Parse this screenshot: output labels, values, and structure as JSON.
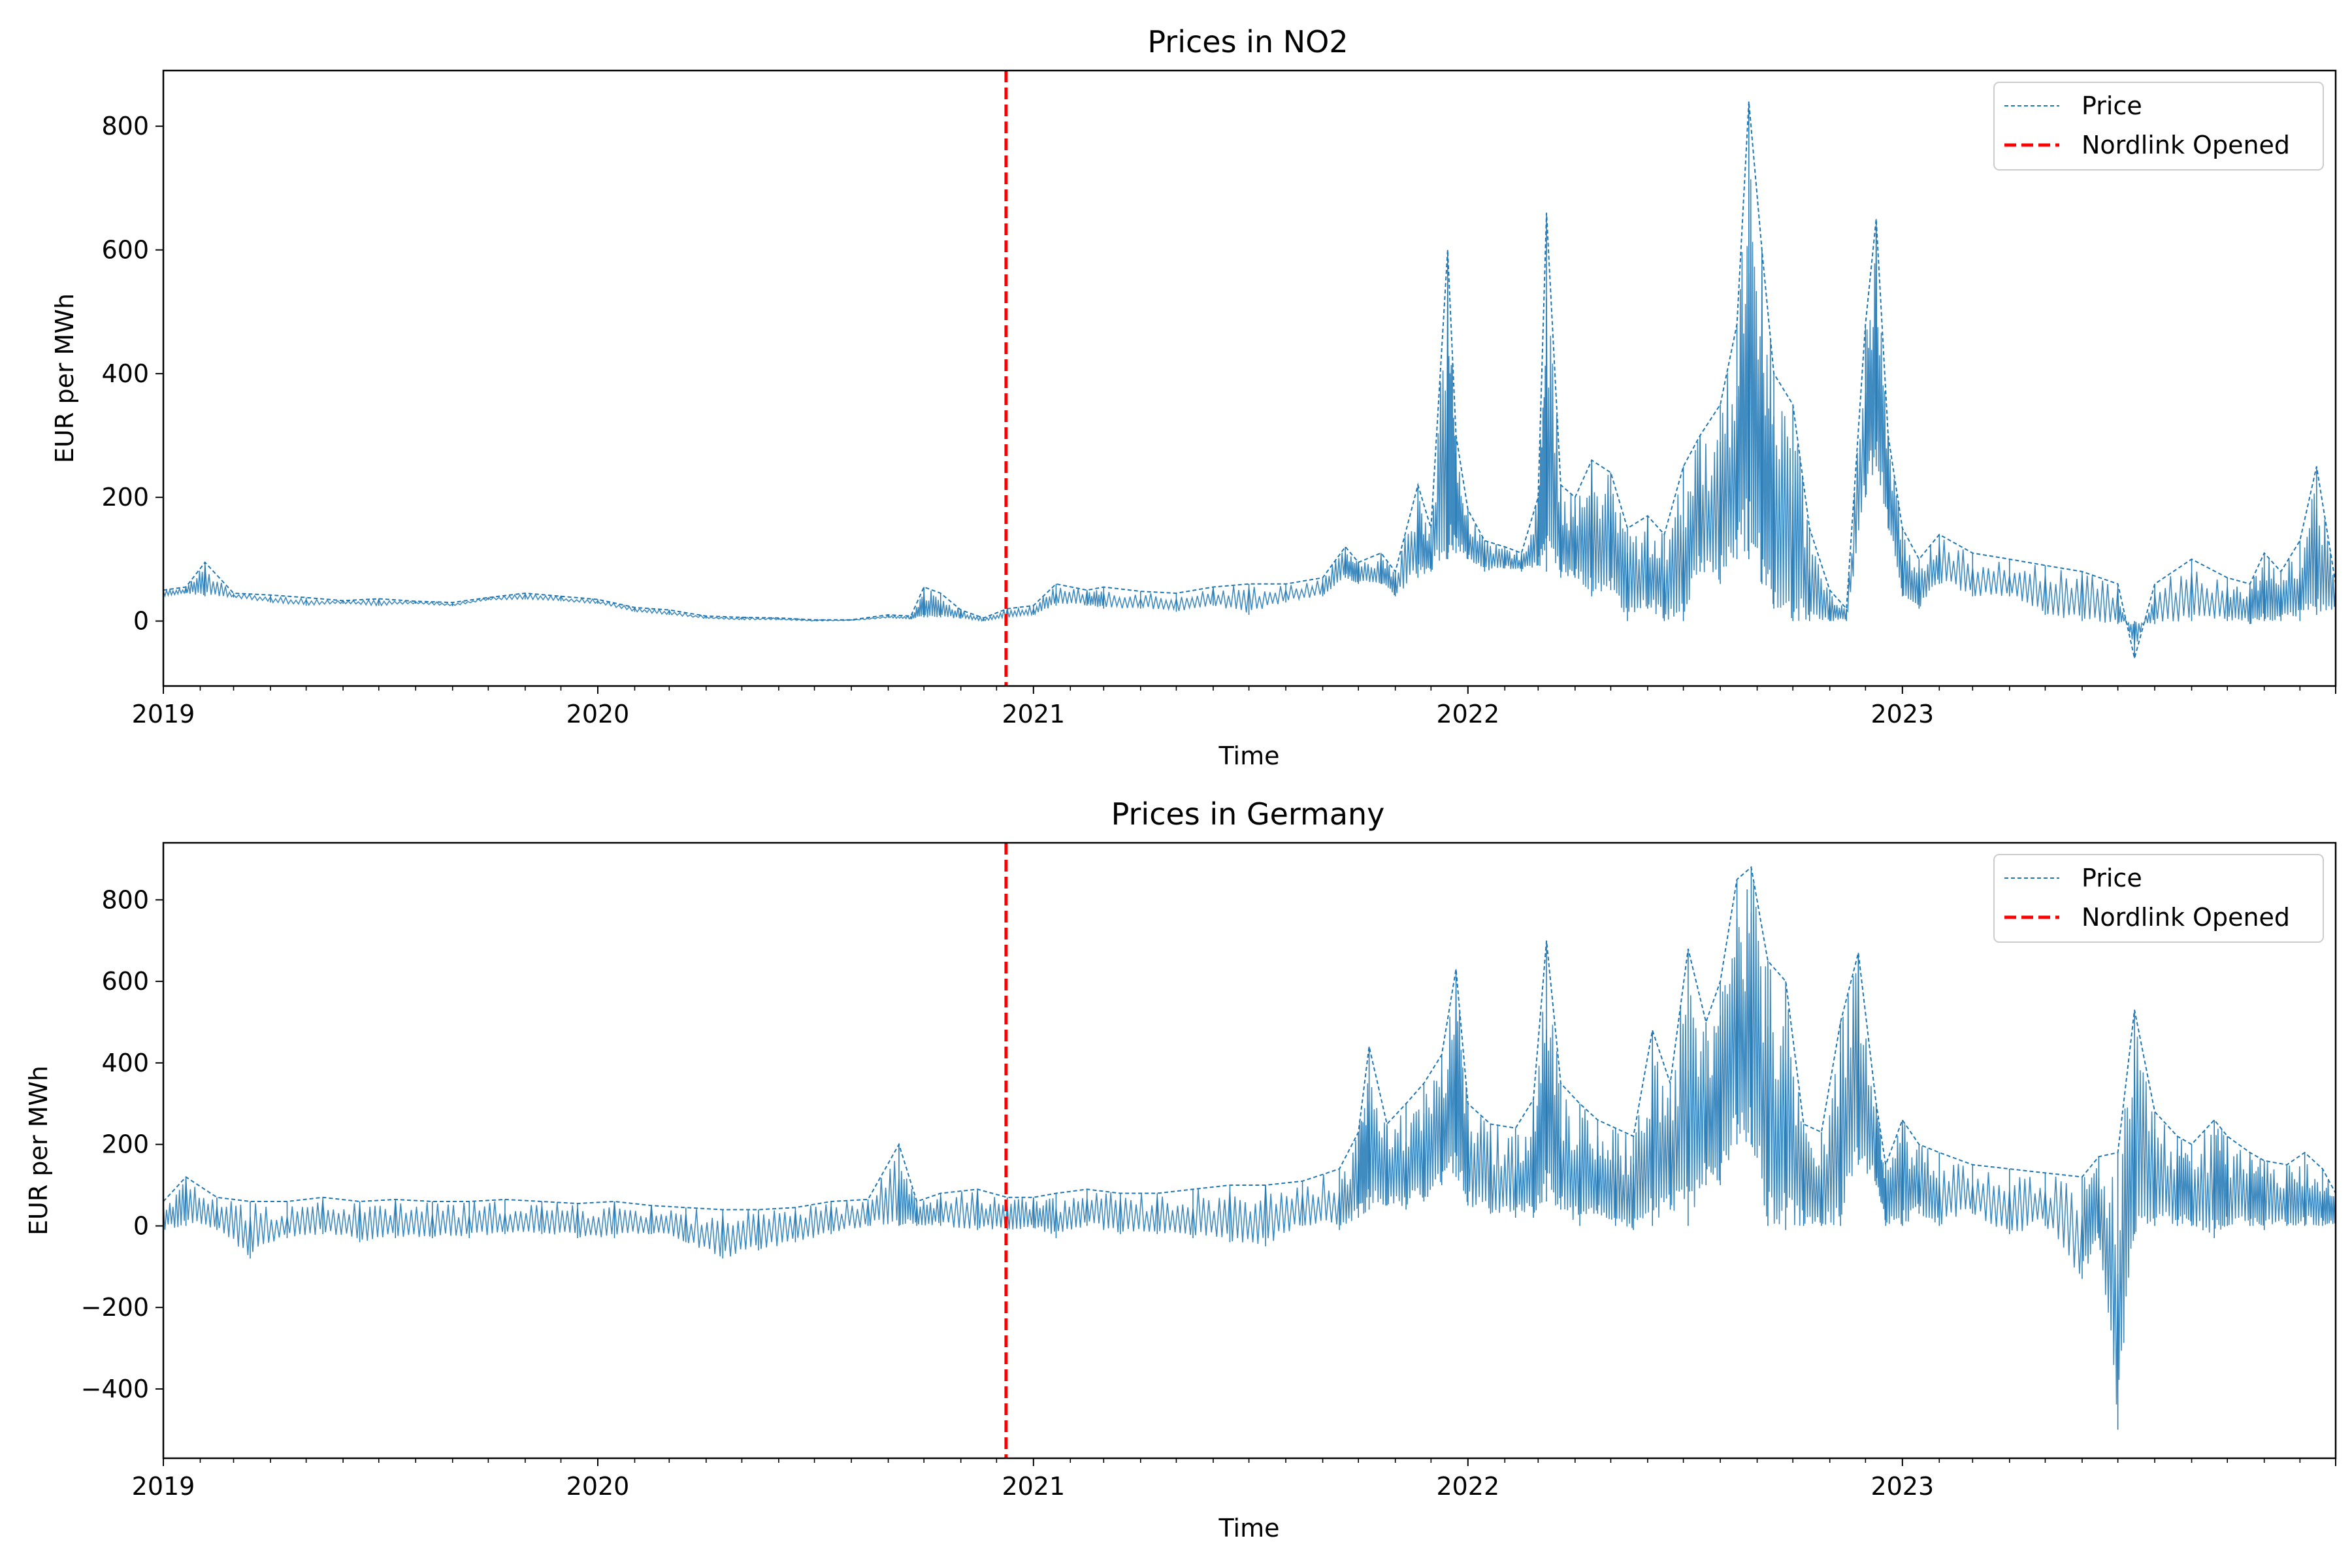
{
  "colors": {
    "price": "#1f77b4",
    "nordlink": "#ff0000",
    "frame": "#000000",
    "legend_border": "#cccccc"
  },
  "chart_data": [
    {
      "type": "line",
      "title": "Prices in NO2",
      "xlabel": "Time",
      "ylabel": "EUR per MWh",
      "x_range": [
        "2019-01-01",
        "2023-12-31"
      ],
      "ylim": [
        -105,
        890
      ],
      "x_ticks": [
        "2019",
        "2020",
        "2021",
        "2022",
        "2023"
      ],
      "y_ticks": [
        0,
        200,
        400,
        600,
        800
      ],
      "legend": {
        "position": "top-right",
        "entries": [
          "Price",
          "Nordlink Opened"
        ]
      },
      "vline": {
        "date": "2020-12-09",
        "label": "Nordlink Opened"
      },
      "series": [
        {
          "name": "Price",
          "style": "dashed",
          "x": [
            "2019-01-01",
            "2019-01-20",
            "2019-02-05",
            "2019-03-01",
            "2019-04-01",
            "2019-05-01",
            "2019-06-01",
            "2019-07-01",
            "2019-08-01",
            "2019-09-01",
            "2019-10-01",
            "2019-11-01",
            "2019-12-01",
            "2020-01-01",
            "2020-02-01",
            "2020-03-01",
            "2020-04-01",
            "2020-05-01",
            "2020-06-01",
            "2020-07-01",
            "2020-08-01",
            "2020-09-01",
            "2020-09-20",
            "2020-10-01",
            "2020-10-15",
            "2020-11-01",
            "2020-11-20",
            "2020-12-10",
            "2021-01-01",
            "2021-01-20",
            "2021-02-15",
            "2021-03-01",
            "2021-04-01",
            "2021-05-01",
            "2021-06-01",
            "2021-07-01",
            "2021-08-01",
            "2021-09-01",
            "2021-09-20",
            "2021-10-01",
            "2021-10-20",
            "2021-11-01",
            "2021-11-20",
            "2021-12-01",
            "2021-12-15",
            "2021-12-22",
            "2022-01-01",
            "2022-01-15",
            "2022-02-01",
            "2022-02-15",
            "2022-03-01",
            "2022-03-08",
            "2022-03-20",
            "2022-04-01",
            "2022-04-15",
            "2022-05-01",
            "2022-05-15",
            "2022-06-01",
            "2022-06-15",
            "2022-07-01",
            "2022-07-15",
            "2022-08-01",
            "2022-08-15",
            "2022-08-25",
            "2022-09-05",
            "2022-09-15",
            "2022-10-01",
            "2022-10-15",
            "2022-11-01",
            "2022-11-15",
            "2022-12-01",
            "2022-12-10",
            "2022-12-20",
            "2023-01-01",
            "2023-01-15",
            "2023-02-01",
            "2023-03-01",
            "2023-04-01",
            "2023-05-01",
            "2023-06-01",
            "2023-07-01",
            "2023-07-15",
            "2023-08-01",
            "2023-09-01",
            "2023-10-01",
            "2023-10-20",
            "2023-11-01",
            "2023-11-15",
            "2023-12-01",
            "2023-12-15",
            "2023-12-31"
          ],
          "y": [
            50,
            55,
            95,
            45,
            42,
            38,
            33,
            36,
            32,
            30,
            38,
            45,
            40,
            35,
            22,
            18,
            8,
            6,
            5,
            2,
            2,
            10,
            8,
            55,
            45,
            18,
            5,
            20,
            25,
            60,
            50,
            55,
            48,
            45,
            55,
            60,
            60,
            70,
            120,
            95,
            110,
            80,
            220,
            150,
            600,
            300,
            180,
            130,
            120,
            110,
            200,
            660,
            220,
            200,
            260,
            240,
            150,
            170,
            140,
            250,
            300,
            350,
            480,
            840,
            600,
            400,
            350,
            150,
            50,
            20,
            480,
            650,
            300,
            150,
            100,
            140,
            110,
            100,
            90,
            80,
            60,
            -60,
            60,
            100,
            70,
            60,
            110,
            80,
            130,
            250,
            60
          ],
          "y_min": [
            40,
            45,
            40,
            38,
            30,
            25,
            28,
            25,
            28,
            24,
            34,
            35,
            32,
            28,
            15,
            10,
            4,
            2,
            2,
            0,
            1,
            5,
            3,
            6,
            6,
            4,
            0,
            5,
            10,
            25,
            25,
            20,
            20,
            15,
            25,
            10,
            30,
            40,
            70,
            60,
            60,
            40,
            70,
            80,
            100,
            110,
            100,
            80,
            85,
            80,
            90,
            80,
            70,
            70,
            40,
            50,
            0,
            20,
            0,
            0,
            80,
            60,
            100,
            100,
            60,
            20,
            0,
            0,
            0,
            0,
            200,
            250,
            150,
            40,
            20,
            60,
            40,
            40,
            10,
            0,
            -5,
            0,
            -5,
            0,
            0,
            -5,
            0,
            0,
            0,
            10,
            20
          ]
        }
      ]
    },
    {
      "type": "line",
      "title": "Prices in Germany",
      "xlabel": "Time",
      "ylabel": "EUR per MWh",
      "x_range": [
        "2019-01-01",
        "2023-12-31"
      ],
      "ylim": [
        -570,
        940
      ],
      "x_ticks": [
        "2019",
        "2020",
        "2021",
        "2022",
        "2023"
      ],
      "y_ticks": [
        -400,
        -200,
        0,
        200,
        400,
        600,
        800
      ],
      "legend": {
        "position": "top-right",
        "entries": [
          "Price",
          "Nordlink Opened"
        ]
      },
      "vline": {
        "date": "2020-12-09",
        "label": "Nordlink Opened"
      },
      "series": [
        {
          "name": "Price",
          "style": "dashed",
          "x": [
            "2019-01-01",
            "2019-01-20",
            "2019-02-15",
            "2019-03-15",
            "2019-04-15",
            "2019-05-15",
            "2019-06-15",
            "2019-07-15",
            "2019-08-15",
            "2019-09-15",
            "2019-10-15",
            "2019-11-15",
            "2019-12-15",
            "2020-01-15",
            "2020-02-15",
            "2020-03-15",
            "2020-04-15",
            "2020-05-15",
            "2020-06-15",
            "2020-07-15",
            "2020-08-15",
            "2020-09-10",
            "2020-09-25",
            "2020-10-15",
            "2020-11-15",
            "2020-12-10",
            "2021-01-01",
            "2021-01-20",
            "2021-02-15",
            "2021-03-15",
            "2021-04-15",
            "2021-05-15",
            "2021-06-15",
            "2021-07-15",
            "2021-08-15",
            "2021-09-15",
            "2021-10-01",
            "2021-10-10",
            "2021-10-25",
            "2021-11-10",
            "2021-11-25",
            "2021-12-10",
            "2021-12-22",
            "2022-01-01",
            "2022-01-20",
            "2022-02-10",
            "2022-02-25",
            "2022-03-08",
            "2022-03-20",
            "2022-04-05",
            "2022-04-20",
            "2022-05-05",
            "2022-05-20",
            "2022-06-05",
            "2022-06-20",
            "2022-07-05",
            "2022-07-20",
            "2022-08-01",
            "2022-08-15",
            "2022-08-27",
            "2022-09-10",
            "2022-09-25",
            "2022-10-10",
            "2022-10-25",
            "2022-11-10",
            "2022-11-25",
            "2022-12-10",
            "2022-12-18",
            "2023-01-01",
            "2023-01-15",
            "2023-02-01",
            "2023-03-01",
            "2023-04-01",
            "2023-05-01",
            "2023-06-01",
            "2023-06-15",
            "2023-07-01",
            "2023-07-15",
            "2023-08-01",
            "2023-08-20",
            "2023-09-01",
            "2023-09-20",
            "2023-10-01",
            "2023-10-20",
            "2023-11-01",
            "2023-11-20",
            "2023-12-05",
            "2023-12-20",
            "2023-12-31"
          ],
          "y": [
            60,
            120,
            70,
            60,
            60,
            70,
            60,
            65,
            60,
            60,
            65,
            60,
            55,
            60,
            50,
            45,
            40,
            40,
            45,
            60,
            65,
            200,
            60,
            80,
            90,
            70,
            70,
            80,
            90,
            80,
            80,
            90,
            100,
            100,
            110,
            140,
            230,
            440,
            250,
            300,
            350,
            420,
            630,
            300,
            250,
            240,
            310,
            700,
            350,
            300,
            260,
            240,
            220,
            480,
            350,
            680,
            500,
            600,
            850,
            880,
            650,
            600,
            250,
            230,
            500,
            670,
            300,
            150,
            260,
            200,
            180,
            150,
            140,
            130,
            120,
            170,
            180,
            530,
            280,
            220,
            200,
            260,
            220,
            180,
            160,
            150,
            180,
            140,
            80
          ],
          "y_min": [
            -10,
            0,
            -10,
            -80,
            -30,
            -20,
            -40,
            -30,
            -30,
            -30,
            -20,
            -20,
            -30,
            -30,
            -20,
            -40,
            -80,
            -60,
            -40,
            -20,
            0,
            0,
            0,
            0,
            -10,
            -10,
            -5,
            -30,
            0,
            -20,
            -20,
            -30,
            -40,
            -50,
            0,
            -10,
            20,
            40,
            50,
            40,
            60,
            100,
            120,
            50,
            30,
            20,
            20,
            60,
            40,
            0,
            30,
            0,
            -10,
            0,
            40,
            0,
            100,
            100,
            200,
            200,
            0,
            -10,
            0,
            0,
            0,
            150,
            100,
            0,
            0,
            30,
            0,
            30,
            -20,
            0,
            -130,
            -30,
            -500,
            -20,
            0,
            0,
            0,
            -30,
            0,
            0,
            -10,
            0,
            0,
            0,
            0
          ]
        }
      ]
    }
  ]
}
